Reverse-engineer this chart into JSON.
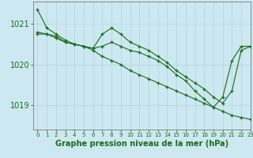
{
  "bg_color": "#cde8f0",
  "line_color": "#1a6b1a",
  "grid_color": "#b8dce8",
  "xlabel": "Graphe pression niveau de la mer (hPa)",
  "xlabel_fontsize": 7,
  "xlim": [
    -0.5,
    23
  ],
  "ylim": [
    1018.4,
    1021.55
  ],
  "yticks": [
    1019,
    1020,
    1021
  ],
  "ytick_fontsize": 7,
  "xtick_fontsize": 5,
  "xticks": [
    0,
    1,
    2,
    3,
    4,
    5,
    6,
    7,
    8,
    9,
    10,
    11,
    12,
    13,
    14,
    15,
    16,
    17,
    18,
    19,
    20,
    21,
    22,
    23
  ],
  "series": [
    {
      "x": [
        0,
        1,
        2,
        3,
        4,
        5,
        6,
        7,
        8,
        9,
        10,
        11,
        12,
        13,
        14,
        15,
        16,
        17,
        18,
        19,
        20,
        21,
        22,
        23
      ],
      "y": [
        1021.35,
        1020.9,
        1020.75,
        1020.6,
        1020.5,
        1020.45,
        1020.35,
        1020.2,
        1020.1,
        1020.0,
        1019.85,
        1019.75,
        1019.65,
        1019.55,
        1019.45,
        1019.35,
        1019.25,
        1019.15,
        1019.05,
        1018.95,
        1018.85,
        1018.75,
        1018.7,
        1018.65
      ]
    },
    {
      "x": [
        0,
        1,
        2,
        3,
        4,
        5,
        6,
        7,
        8,
        9,
        10,
        11,
        12,
        13,
        14,
        15,
        16,
        17,
        18,
        19,
        20,
        21,
        22,
        23
      ],
      "y": [
        1020.75,
        1020.75,
        1020.65,
        1020.55,
        1020.5,
        1020.45,
        1020.4,
        1020.75,
        1020.9,
        1020.75,
        1020.55,
        1020.45,
        1020.35,
        1020.2,
        1020.05,
        1019.85,
        1019.7,
        1019.55,
        1019.4,
        1019.2,
        1019.05,
        1019.35,
        1020.35,
        1020.45
      ]
    },
    {
      "x": [
        0,
        1,
        2,
        3,
        4,
        5,
        6,
        7,
        8,
        9,
        10,
        11,
        12,
        13,
        14,
        15,
        16,
        17,
        18,
        19,
        20,
        21,
        22,
        23
      ],
      "y": [
        1020.8,
        1020.75,
        1020.7,
        1020.55,
        1020.5,
        1020.45,
        1020.4,
        1020.45,
        1020.55,
        1020.45,
        1020.35,
        1020.3,
        1020.2,
        1020.1,
        1019.95,
        1019.75,
        1019.6,
        1019.35,
        1019.15,
        1018.95,
        1019.2,
        1020.1,
        1020.45,
        1020.45
      ]
    }
  ]
}
